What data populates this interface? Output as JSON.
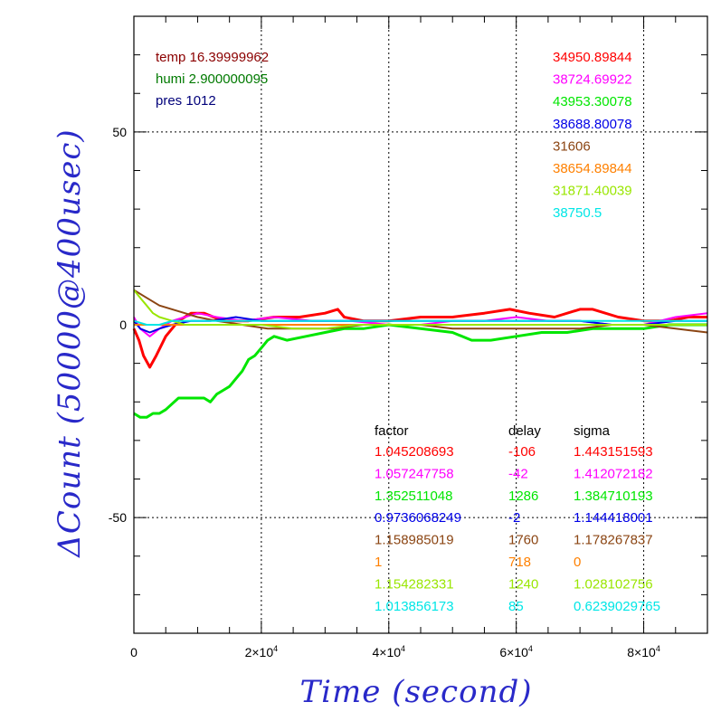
{
  "chart_data": {
    "type": "line",
    "xlabel": "Time (second)",
    "ylabel": "ΔCount (50000@400usec)",
    "xlim": [
      0,
      90000
    ],
    "ylim": [
      -80,
      80
    ],
    "grid": true,
    "x_ticks": [
      {
        "value": 0,
        "label": "0"
      },
      {
        "value": 20000,
        "label": "2×10",
        "exp": "4"
      },
      {
        "value": 40000,
        "label": "4×10",
        "exp": "4"
      },
      {
        "value": 60000,
        "label": "6×10",
        "exp": "4"
      },
      {
        "value": 80000,
        "label": "8×10",
        "exp": "4"
      }
    ],
    "y_ticks": [
      {
        "value": 50,
        "label": "50"
      },
      {
        "value": 0,
        "label": "0"
      },
      {
        "value": -50,
        "label": "-50"
      }
    ],
    "env": [
      {
        "text": "temp 16.39999962",
        "color": "#8b0000"
      },
      {
        "text": "humi 2.900000095",
        "color": "#007a00"
      },
      {
        "text": "pres 1012",
        "color": "#00007a"
      }
    ],
    "table_headers": [
      "factor",
      "delay",
      "sigma"
    ],
    "series": [
      {
        "color": "#ff0000",
        "mean": "34950.89844",
        "factor": "1.045208693",
        "delay": "-106",
        "sigma": "1.443151593",
        "x": [
          0,
          800,
          1500,
          2500,
          3500,
          5000,
          7000,
          9000,
          11000,
          14000,
          18000,
          22000,
          26000,
          30000,
          32000,
          33000,
          36000,
          40000,
          45000,
          50000,
          55000,
          59000,
          62000,
          66000,
          70000,
          72000,
          76000,
          80000,
          84000,
          87000,
          90000
        ],
        "y": [
          -1,
          -4,
          -8,
          -11,
          -8,
          -3,
          1,
          3,
          3,
          1,
          1,
          2,
          2,
          3,
          4,
          2,
          1,
          1,
          2,
          2,
          3,
          4,
          3,
          2,
          4,
          4,
          2,
          1,
          1,
          2,
          2
        ]
      },
      {
        "color": "#ff00ff",
        "mean": "38724.69922",
        "factor": "1.057247758",
        "delay": "-42",
        "sigma": "1.412072182",
        "x": [
          0,
          1000,
          2500,
          4000,
          6000,
          8000,
          10000,
          13000,
          17000,
          22000,
          28000,
          34000,
          40000,
          45000,
          50000,
          55000,
          60000,
          65000,
          70000,
          75000,
          80000,
          85000,
          90000
        ],
        "y": [
          2,
          -1,
          -3,
          -1,
          1,
          2,
          3,
          2,
          1,
          2,
          1,
          1,
          0,
          0,
          1,
          1,
          2,
          1,
          1,
          0,
          0,
          2,
          3
        ]
      },
      {
        "color": "#00e600",
        "mean": "43953.30078",
        "factor": "1.352511048",
        "delay": "1286",
        "sigma": "1.384710193",
        "x": [
          0,
          1000,
          2000,
          3000,
          4000,
          5000,
          7000,
          9000,
          11000,
          12000,
          13000,
          14000,
          15000,
          16000,
          17000,
          18000,
          19000,
          20000,
          21000,
          22000,
          24000,
          27000,
          30000,
          33000,
          36000,
          40000,
          45000,
          50000,
          53000,
          56000,
          60000,
          64000,
          68000,
          72000,
          76000,
          80000,
          84000,
          88000,
          90000
        ],
        "y": [
          -23,
          -24,
          -24,
          -23,
          -23,
          -22,
          -19,
          -19,
          -19,
          -20,
          -18,
          -17,
          -16,
          -14,
          -12,
          -9,
          -8,
          -6,
          -4,
          -3,
          -4,
          -3,
          -2,
          -1,
          -1,
          0,
          -1,
          -2,
          -4,
          -4,
          -3,
          -2,
          -2,
          -1,
          -1,
          -1,
          0,
          0,
          0
        ]
      },
      {
        "color": "#0000e6",
        "mean": "38688.80078",
        "factor": "0.9736068249",
        "delay": "-2",
        "sigma": "1.144418001",
        "x": [
          0,
          1000,
          2500,
          4000,
          6000,
          9000,
          12000,
          16000,
          20000,
          25000,
          30000,
          35000,
          40000,
          45000,
          50000,
          55000,
          60000,
          65000,
          70000,
          75000,
          80000,
          85000,
          90000
        ],
        "y": [
          1,
          -1,
          -2,
          -1,
          0,
          1,
          1,
          2,
          1,
          1,
          1,
          1,
          1,
          1,
          1,
          1,
          1,
          1,
          1,
          0,
          0,
          1,
          1
        ]
      },
      {
        "color": "#8b4513",
        "mean": "31606",
        "factor": "1.158985019",
        "delay": "1760",
        "sigma": "1.178267837",
        "x": [
          0,
          2000,
          4000,
          6000,
          8000,
          10000,
          13000,
          17000,
          21000,
          26000,
          31000,
          36000,
          40000,
          45000,
          50000,
          55000,
          60000,
          65000,
          70000,
          75000,
          80000,
          85000,
          90000
        ],
        "y": [
          9,
          7,
          5,
          4,
          3,
          2,
          1,
          0,
          -1,
          -1,
          -1,
          0,
          0,
          0,
          -1,
          -1,
          -1,
          -1,
          -1,
          0,
          0,
          -1,
          -2
        ]
      },
      {
        "color": "#ff8000",
        "mean": "38654.89844",
        "factor": "1",
        "delay": "718",
        "sigma": "0",
        "x": [
          0,
          3000,
          6000,
          10000,
          15000,
          20000,
          25000,
          30000,
          35000,
          40000,
          45000,
          50000,
          55000,
          60000,
          65000,
          70000,
          75000,
          80000,
          85000,
          90000
        ],
        "y": [
          0,
          0,
          0,
          0,
          0,
          0,
          0,
          0,
          0,
          0,
          0,
          0,
          0,
          0,
          0,
          0,
          0,
          0,
          0,
          0
        ]
      },
      {
        "color": "#99e600",
        "mean": "31871.40039",
        "factor": "1.154282331",
        "delay": "1240",
        "sigma": "1.028102756",
        "x": [
          0,
          1000,
          2000,
          3000,
          4000,
          6000,
          8000,
          11000,
          15000,
          20000,
          25000,
          30000,
          35000,
          40000,
          45000,
          50000,
          55000,
          60000,
          65000,
          70000,
          75000,
          80000,
          85000,
          90000
        ],
        "y": [
          9,
          7,
          5,
          3,
          2,
          1,
          0,
          0,
          0,
          0,
          -1,
          -1,
          0,
          0,
          0,
          0,
          0,
          0,
          0,
          0,
          0,
          0,
          0,
          0
        ]
      },
      {
        "color": "#00e6e6",
        "mean": "38750.5",
        "factor": "1.013856173",
        "delay": "85",
        "sigma": "0.6239029765",
        "x": [
          0,
          2000,
          4000,
          6000,
          10000,
          15000,
          20000,
          25000,
          30000,
          35000,
          40000,
          45000,
          50000,
          55000,
          60000,
          65000,
          70000,
          75000,
          80000,
          85000,
          90000
        ],
        "y": [
          1,
          0,
          0,
          1,
          1,
          1,
          1,
          1,
          1,
          1,
          1,
          1,
          1,
          1,
          1,
          1,
          1,
          1,
          1,
          1,
          1
        ]
      }
    ]
  }
}
